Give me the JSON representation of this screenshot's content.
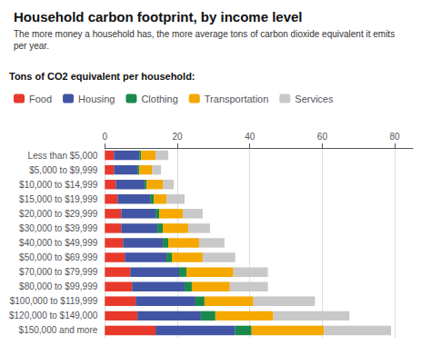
{
  "chart_data": {
    "type": "bar",
    "orientation": "horizontal",
    "stacked": true,
    "title": "Household carbon footprint, by income level",
    "subtitle": "The more money a household has, the more average tons of carbon dioxide equivalent it emits\nper year.",
    "annotations": [
      "Tons of CO2 equivalent per household:"
    ],
    "categories": [
      "Less than $5,000",
      "$5,000 to $9,999",
      "$10,000 to $14,999",
      "$15,000 to $19,999",
      "$20,000 to $29,999",
      "$30,000 to $39,999",
      "$40,000 to $49,999",
      "$50,000 to $69,999",
      "$70,000 to $79,999",
      "$80,000 to $99,999",
      "$100,000 to $119,999",
      "$120,000 to $149,000",
      "$150,000 and more"
    ],
    "series": [
      {
        "name": "Food",
        "color": "#e8392a",
        "values": [
          2.5,
          2.5,
          3.0,
          3.5,
          4.5,
          4.5,
          5.0,
          5.5,
          7.0,
          7.5,
          8.5,
          9.0,
          14.0
        ]
      },
      {
        "name": "Housing",
        "color": "#4255a4",
        "values": [
          7.0,
          6.5,
          8.0,
          9.0,
          9.5,
          10.0,
          11.0,
          11.5,
          13.5,
          14.5,
          16.5,
          17.5,
          22.0
        ]
      },
      {
        "name": "Clothing",
        "color": "#1a8a4a",
        "values": [
          0.5,
          0.5,
          0.5,
          1.0,
          1.0,
          1.5,
          1.5,
          1.5,
          2.0,
          2.0,
          2.5,
          4.0,
          4.5
        ]
      },
      {
        "name": "Transportation",
        "color": "#f5a800",
        "values": [
          4.0,
          3.5,
          4.5,
          3.5,
          6.5,
          7.0,
          8.5,
          8.5,
          13.0,
          10.5,
          13.5,
          16.0,
          20.0
        ]
      },
      {
        "name": "Services",
        "color": "#c8c8c8",
        "values": [
          3.5,
          2.5,
          3.0,
          5.0,
          5.5,
          6.0,
          7.0,
          9.0,
          9.5,
          10.5,
          17.0,
          21.0,
          18.5
        ]
      }
    ],
    "xlim": [
      0,
      85
    ],
    "xticks": [
      0,
      20,
      40,
      60,
      80
    ],
    "grid": true,
    "legend": "top-left"
  }
}
